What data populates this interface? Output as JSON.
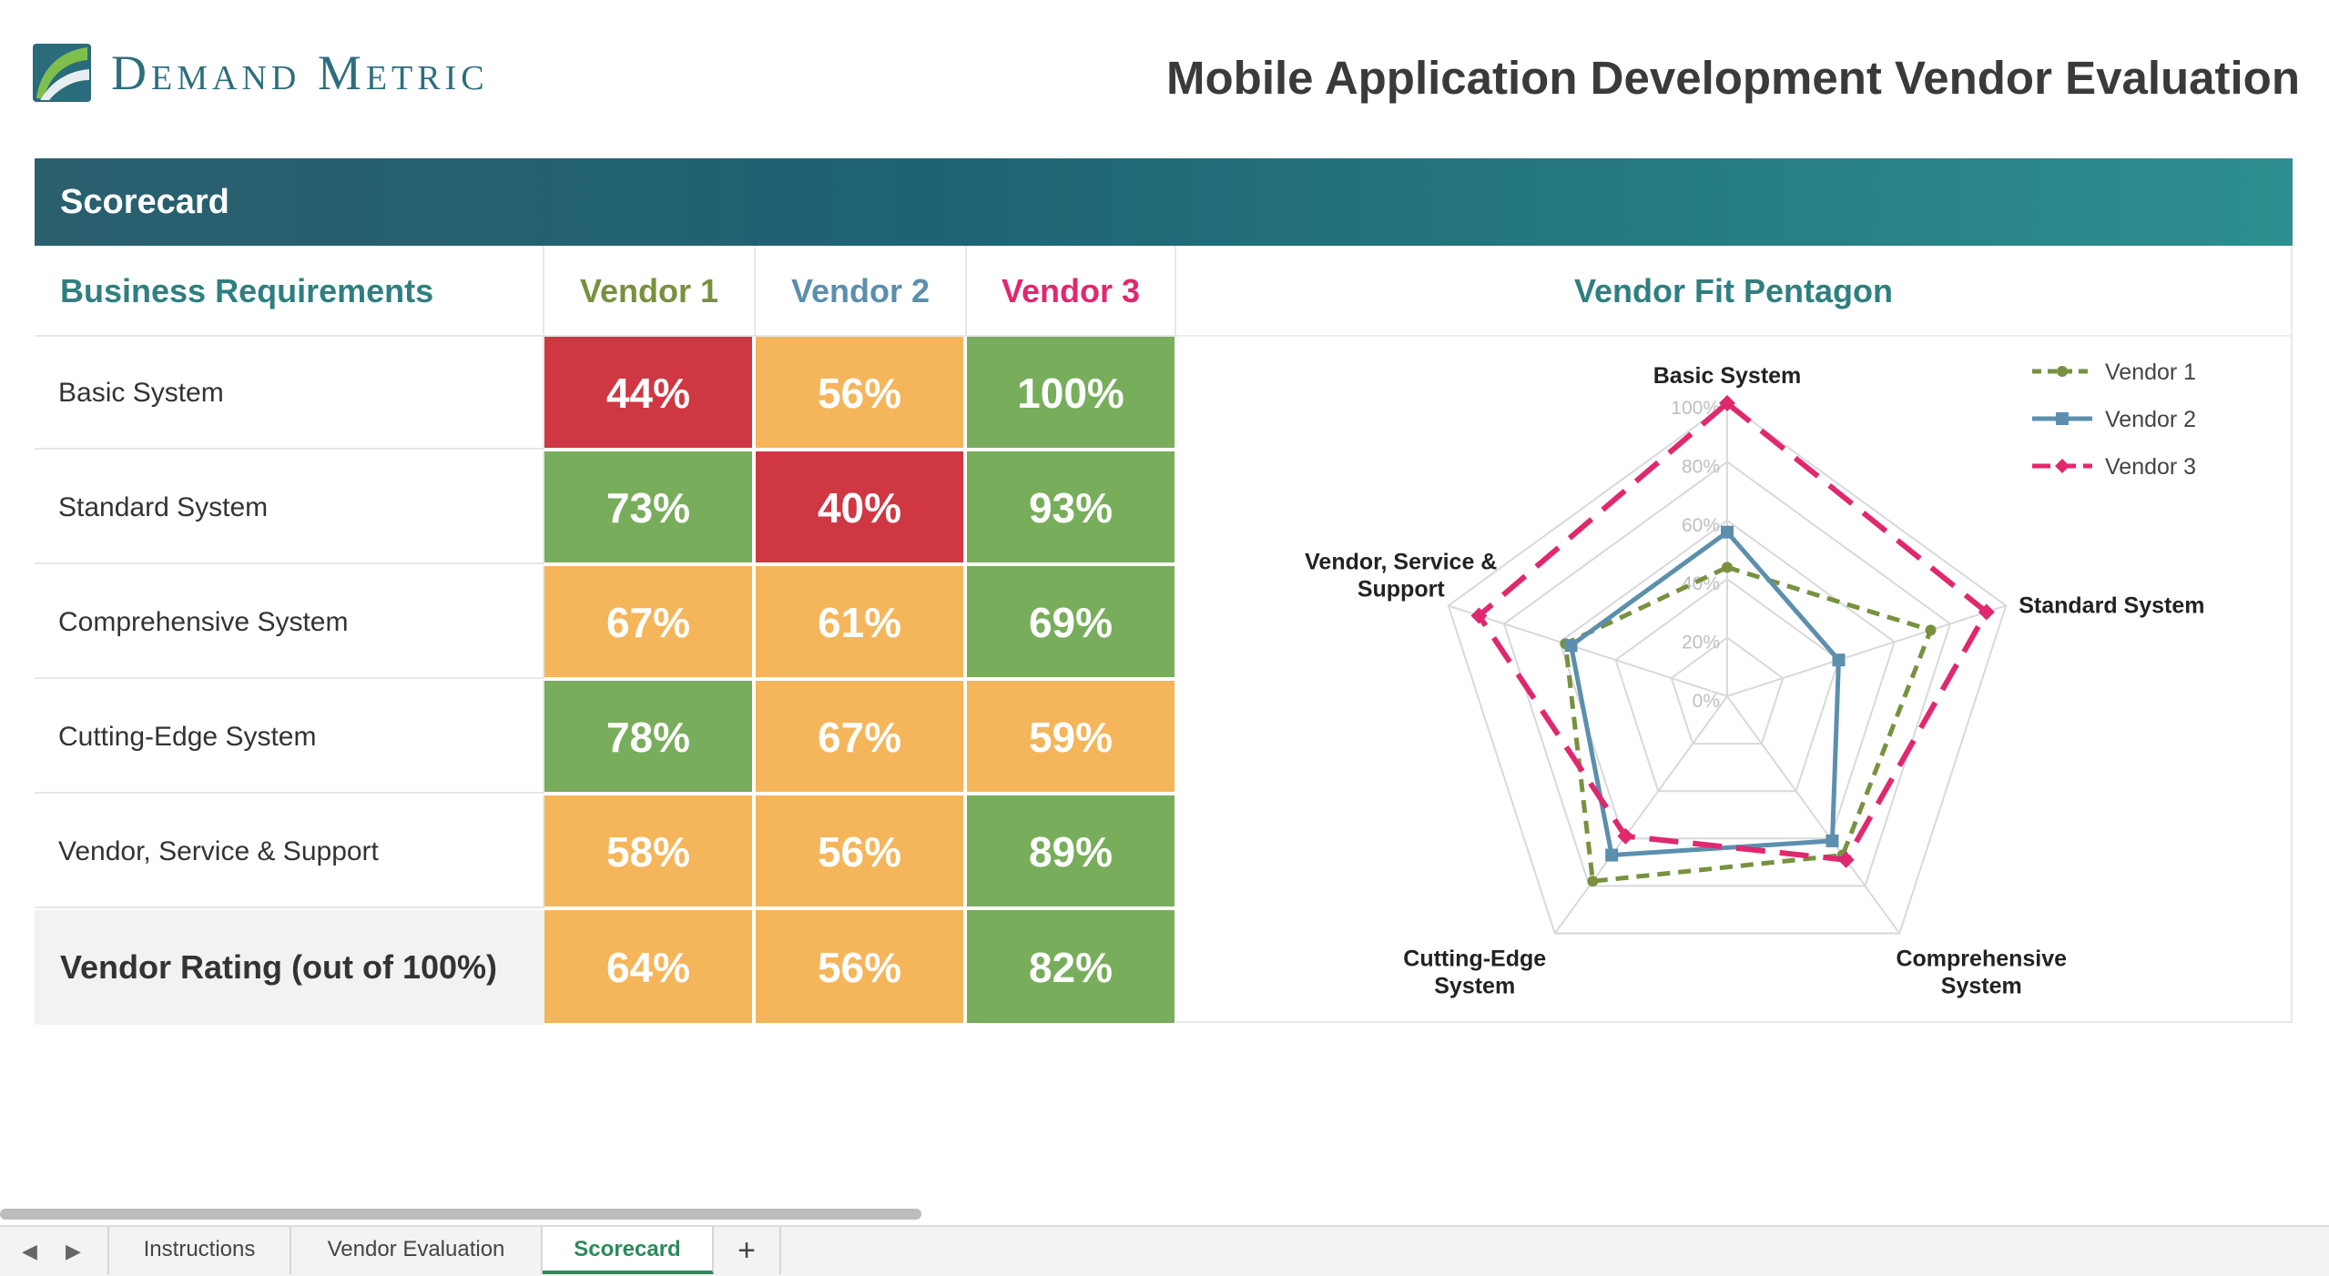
{
  "header": {
    "logo_text": "Demand Metric",
    "title": "Mobile Application Development Vendor Evaluation"
  },
  "section": {
    "title": "Scorecard"
  },
  "table": {
    "headers": {
      "requirements": "Business Requirements",
      "v1": "Vendor 1",
      "v2": "Vendor 2",
      "v3": "Vendor 3"
    },
    "header_colors": {
      "v1": "#77913f",
      "v2": "#5b8fad",
      "v3": "#e0286e",
      "requirements": "#2f7f80"
    },
    "rows": [
      {
        "label": "Basic System",
        "v1": "44%",
        "v2": "56%",
        "v3": "100%"
      },
      {
        "label": "Standard System",
        "v1": "73%",
        "v2": "40%",
        "v3": "93%"
      },
      {
        "label": "Comprehensive System",
        "v1": "67%",
        "v2": "61%",
        "v3": "69%"
      },
      {
        "label": "Cutting-Edge System",
        "v1": "78%",
        "v2": "67%",
        "v3": "59%"
      },
      {
        "label": "Vendor, Service & Support",
        "v1": "58%",
        "v2": "56%",
        "v3": "89%"
      }
    ],
    "rating": {
      "label": "Vendor Rating (out of 100%)",
      "v1": "64%",
      "v2": "56%",
      "v3": "82%"
    },
    "cell_colors": {
      "red": "#cf3742",
      "orange": "#f5b55a",
      "green": "#78ad5c"
    }
  },
  "chart_data": {
    "type": "radar",
    "title": "Vendor Fit Pentagon",
    "axes": [
      "Basic System",
      "Standard System",
      "Comprehensive System",
      "Cutting-Edge System",
      "Vendor, Service & Support"
    ],
    "axis_labels_display": [
      "Basic System",
      "Standard System",
      "Comprehensive System",
      "Cutting-Edge System",
      "Vendor, Service & Support"
    ],
    "ticks": [
      "0%",
      "20%",
      "40%",
      "60%",
      "80%",
      "100%"
    ],
    "range": [
      0,
      100
    ],
    "series": [
      {
        "name": "Vendor 1",
        "values": [
          44,
          73,
          67,
          78,
          58
        ],
        "color": "#77913f",
        "style": "dotted-circle"
      },
      {
        "name": "Vendor 2",
        "values": [
          56,
          40,
          61,
          67,
          56
        ],
        "color": "#5b8fad",
        "style": "solid-square"
      },
      {
        "name": "Vendor 3",
        "values": [
          100,
          93,
          69,
          59,
          89
        ],
        "color": "#e0286e",
        "style": "dashed-diamond"
      }
    ],
    "legend_position": "top-right"
  },
  "sheet_tabs": {
    "tabs": [
      "Instructions",
      "Vendor Evaluation",
      "Scorecard"
    ],
    "active": "Scorecard",
    "add_label": "+"
  }
}
